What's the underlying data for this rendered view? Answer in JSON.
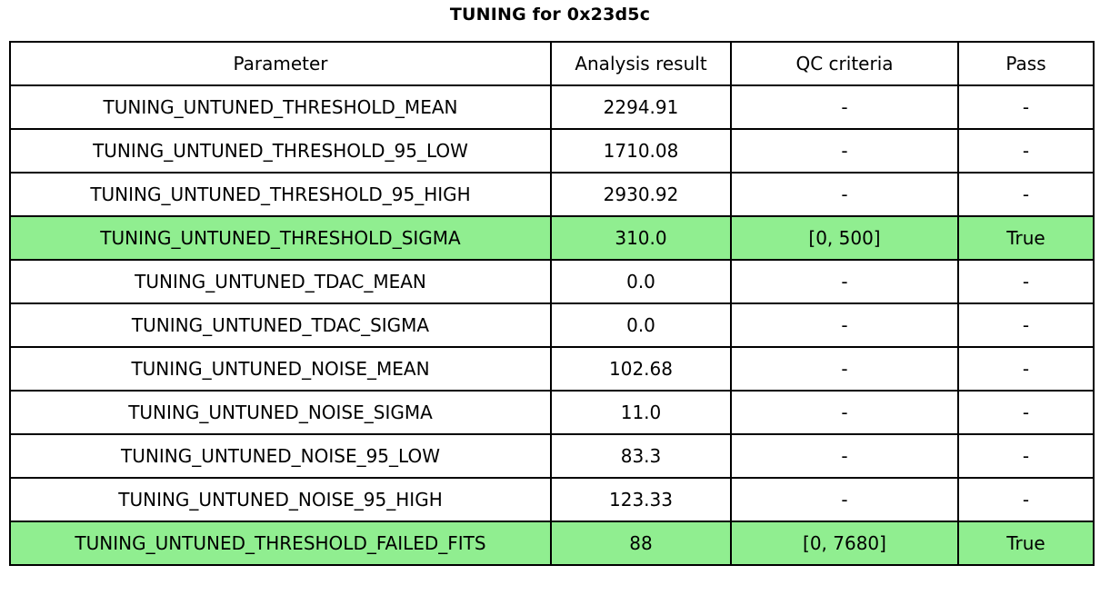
{
  "chart_data": {
    "type": "table",
    "title": "TUNING for 0x23d5c",
    "columns": [
      "Parameter",
      "Analysis result",
      "QC criteria",
      "Pass"
    ],
    "rows": [
      [
        "TUNING_UNTUNED_THRESHOLD_MEAN",
        "2294.91",
        "-",
        "-"
      ],
      [
        "TUNING_UNTUNED_THRESHOLD_95_LOW",
        "1710.08",
        "-",
        "-"
      ],
      [
        "TUNING_UNTUNED_THRESHOLD_95_HIGH",
        "2930.92",
        "-",
        "-"
      ],
      [
        "TUNING_UNTUNED_THRESHOLD_SIGMA",
        "310.0",
        "[0, 500]",
        "True"
      ],
      [
        "TUNING_UNTUNED_TDAC_MEAN",
        "0.0",
        "-",
        "-"
      ],
      [
        "TUNING_UNTUNED_TDAC_SIGMA",
        "0.0",
        "-",
        "-"
      ],
      [
        "TUNING_UNTUNED_NOISE_MEAN",
        "102.68",
        "-",
        "-"
      ],
      [
        "TUNING_UNTUNED_NOISE_SIGMA",
        "11.0",
        "-",
        "-"
      ],
      [
        "TUNING_UNTUNED_NOISE_95_LOW",
        "83.3",
        "-",
        "-"
      ],
      [
        "TUNING_UNTUNED_NOISE_95_HIGH",
        "123.33",
        "-",
        "-"
      ],
      [
        "TUNING_UNTUNED_THRESHOLD_FAILED_FITS",
        "88",
        "[0, 7680]",
        "True"
      ]
    ],
    "highlighted_rows": [
      3,
      10
    ],
    "layout": {
      "grid": true,
      "cell_text_align": "center",
      "header_row": true
    }
  },
  "colors": {
    "highlight": "#90ee90",
    "border": "#000000",
    "background": "#ffffff",
    "text": "#000000"
  }
}
